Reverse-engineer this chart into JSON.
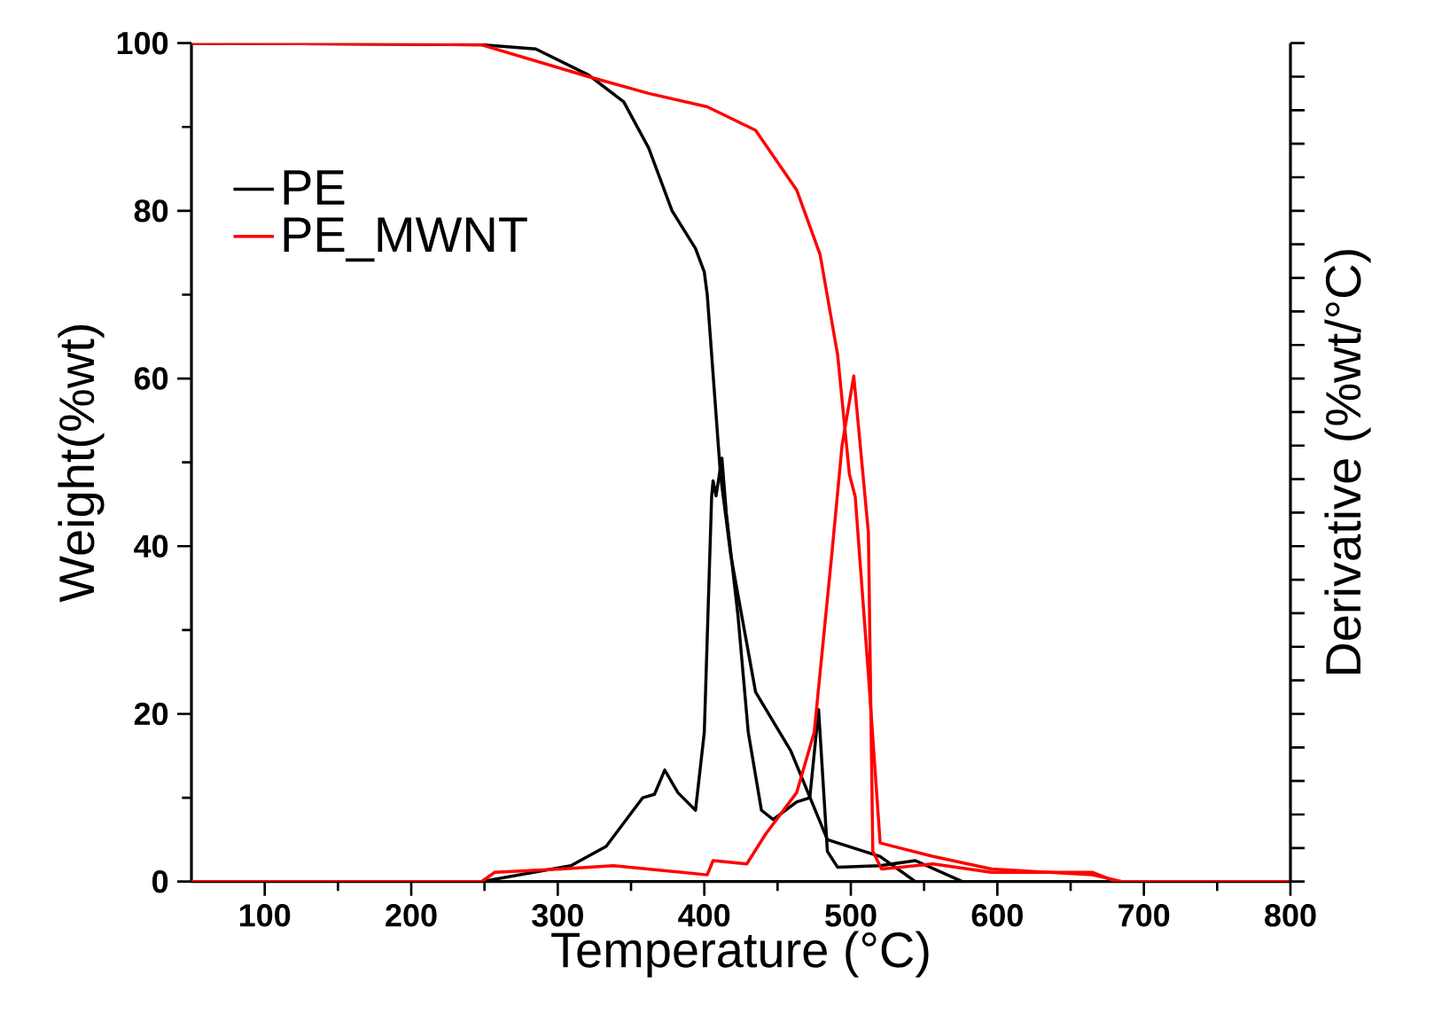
{
  "chart_data": {
    "type": "line",
    "xlabel": "Temperature (°C)",
    "ylabel": "Weight(%wt)",
    "y2label": "Derivative (%wt/°C)",
    "xlim": [
      50,
      800
    ],
    "xticks": [
      100,
      200,
      300,
      400,
      500,
      600,
      700,
      800
    ],
    "ylim": [
      0,
      100
    ],
    "yticks": [
      0,
      20,
      40,
      60,
      80,
      100
    ],
    "legend": "top left",
    "grid": false,
    "line_style": "solid",
    "marker": "none",
    "series": [
      {
        "name": "PE",
        "color": "#000000",
        "x": [
          50,
          248,
          285,
          321,
          345,
          362,
          378,
          394,
          400,
          402,
          411,
          418,
          435,
          459,
          484,
          520,
          544,
          800
        ],
        "values": [
          100,
          99.8,
          99.3,
          96.2,
          93,
          87.5,
          80,
          75.5,
          72.7,
          70,
          48.6,
          39,
          22.6,
          15.6,
          5,
          3,
          0,
          0
        ]
      },
      {
        "name": "PE_MWNT",
        "color": "#ff0000",
        "x": [
          50,
          248,
          321,
          362,
          402,
          435,
          463,
          479,
          491,
          499,
          503,
          512,
          520,
          556,
          596,
          665,
          685,
          800
        ],
        "values": [
          100,
          99.8,
          96,
          94,
          92.4,
          89.6,
          82.5,
          74.8,
          62.8,
          48.6,
          45.9,
          24.7,
          4.6,
          3,
          1.5,
          0.8,
          0,
          0
        ]
      },
      {
        "color": "#000000",
        "x": [
          50,
          248,
          309,
          333,
          358,
          366,
          373,
          382,
          394,
          400,
          405,
          406,
          408,
          412,
          415,
          423,
          430,
          439,
          447,
          463,
          472,
          478,
          484,
          491,
          520,
          544,
          576,
          800
        ],
        "values": [
          0,
          0,
          1.9,
          4.2,
          10,
          10.4,
          13.3,
          10.6,
          8.5,
          17.8,
          45.9,
          47.8,
          46,
          50.5,
          44,
          31.7,
          17.8,
          8.5,
          7.4,
          9.5,
          10,
          20.5,
          3.6,
          1.7,
          1.9,
          2.5,
          0,
          0
        ]
      },
      {
        "color": "#ff0000",
        "x": [
          50,
          248,
          257,
          302,
          338,
          402,
          406,
          429,
          442,
          463,
          475,
          487,
          494,
          502,
          512,
          515,
          521,
          556,
          596,
          665,
          681,
          800
        ],
        "values": [
          0,
          0,
          1.1,
          1.5,
          1.9,
          0.8,
          2.5,
          2.1,
          5.7,
          10.6,
          17.8,
          39,
          52,
          60.3,
          41.6,
          3.6,
          1.5,
          2.1,
          1.1,
          1.1,
          0,
          0
        ]
      }
    ]
  }
}
